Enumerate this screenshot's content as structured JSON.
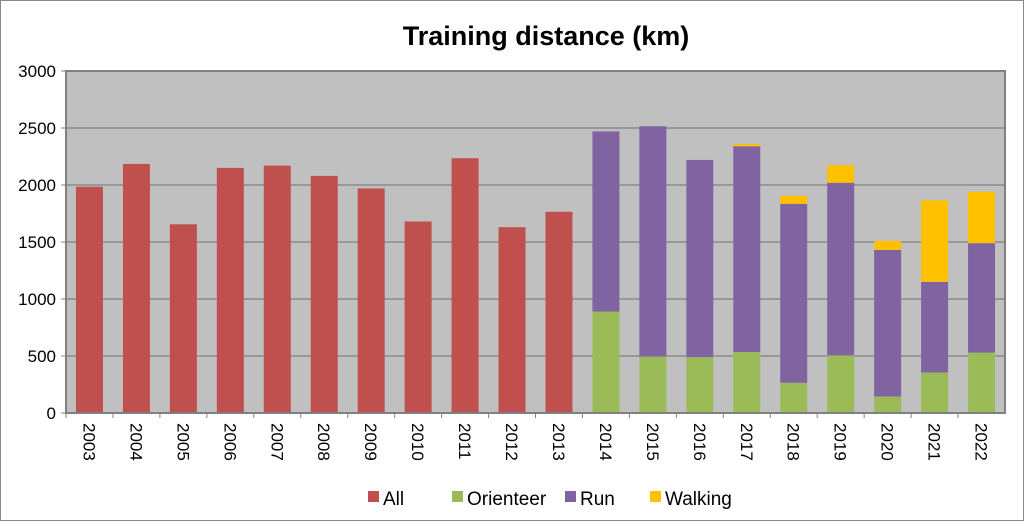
{
  "chart_data": {
    "type": "bar",
    "stacked": true,
    "title": "Training distance (km)",
    "xlabel": "",
    "ylabel": "",
    "ylim": [
      0,
      3000
    ],
    "yticks": [
      0,
      500,
      1000,
      1500,
      2000,
      2500,
      3000
    ],
    "grid": true,
    "legend_position": "bottom",
    "categories": [
      "2003",
      "2004",
      "2005",
      "2006",
      "2007",
      "2008",
      "2009",
      "2010",
      "2011",
      "2012",
      "2013",
      "2014",
      "2015",
      "2016",
      "2017",
      "2018",
      "2019",
      "2020",
      "2021",
      "2022"
    ],
    "series": [
      {
        "name": "All",
        "color": "#c0504d",
        "values": [
          1985,
          2185,
          1655,
          2150,
          2170,
          2080,
          1970,
          1680,
          2235,
          1630,
          1765,
          0,
          0,
          0,
          0,
          0,
          0,
          0,
          0,
          0
        ]
      },
      {
        "name": "Orienteer",
        "color": "#9bbb59",
        "values": [
          0,
          0,
          0,
          0,
          0,
          0,
          0,
          0,
          0,
          0,
          0,
          890,
          495,
          490,
          535,
          265,
          505,
          145,
          355,
          530
        ]
      },
      {
        "name": "Run",
        "color": "#8064a2",
        "values": [
          0,
          0,
          0,
          0,
          0,
          0,
          0,
          0,
          0,
          0,
          0,
          1580,
          2020,
          1730,
          1805,
          1570,
          1515,
          1285,
          795,
          960
        ]
      },
      {
        "name": "Walking",
        "color": "#ffc000",
        "values": [
          0,
          0,
          0,
          0,
          0,
          0,
          0,
          0,
          0,
          0,
          0,
          0,
          0,
          0,
          20,
          70,
          155,
          80,
          715,
          450
        ]
      }
    ]
  }
}
